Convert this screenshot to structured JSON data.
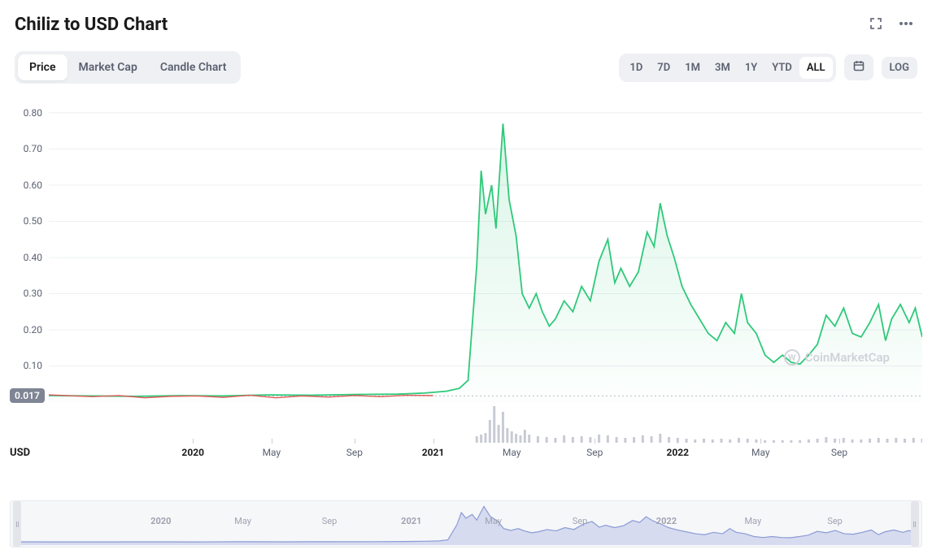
{
  "header": {
    "title": "Chiliz to USD Chart"
  },
  "left_tabs": [
    {
      "label": "Price",
      "active": true
    },
    {
      "label": "Market Cap",
      "active": false
    },
    {
      "label": "Candle Chart",
      "active": false
    }
  ],
  "range_buttons": [
    {
      "label": "1D",
      "active": false
    },
    {
      "label": "7D",
      "active": false
    },
    {
      "label": "1M",
      "active": false
    },
    {
      "label": "3M",
      "active": false
    },
    {
      "label": "1Y",
      "active": false
    },
    {
      "label": "YTD",
      "active": false
    },
    {
      "label": "ALL",
      "active": true
    }
  ],
  "log_label": "LOG",
  "chart": {
    "type": "area",
    "line_color": "#2ec97a",
    "fill_top": "rgba(46,201,122,0.18)",
    "fill_bottom": "rgba(46,201,122,0.01)",
    "btc_line_color": "#e25a5a",
    "grid_color": "#edeff2",
    "background_color": "#ffffff",
    "ylim": [
      0,
      0.82
    ],
    "y_ticks": [
      0.1,
      0.2,
      0.3,
      0.4,
      0.5,
      0.6,
      0.7,
      0.8
    ],
    "current_price_label": "0.017",
    "current_price_value": 0.017,
    "x_labels": [
      {
        "label": "2020",
        "t": 0.165,
        "bold": true
      },
      {
        "label": "May",
        "t": 0.255,
        "bold": false
      },
      {
        "label": "Sep",
        "t": 0.35,
        "bold": false
      },
      {
        "label": "2021",
        "t": 0.44,
        "bold": true
      },
      {
        "label": "May",
        "t": 0.53,
        "bold": false
      },
      {
        "label": "Sep",
        "t": 0.625,
        "bold": false
      },
      {
        "label": "2022",
        "t": 0.72,
        "bold": true
      },
      {
        "label": "May",
        "t": 0.815,
        "bold": false
      },
      {
        "label": "Sep",
        "t": 0.905,
        "bold": false
      }
    ],
    "usd_label": "USD",
    "series": [
      [
        0.0,
        0.018
      ],
      [
        0.05,
        0.017
      ],
      [
        0.1,
        0.016
      ],
      [
        0.15,
        0.018
      ],
      [
        0.2,
        0.017
      ],
      [
        0.25,
        0.02
      ],
      [
        0.3,
        0.019
      ],
      [
        0.35,
        0.021
      ],
      [
        0.4,
        0.022
      ],
      [
        0.43,
        0.025
      ],
      [
        0.455,
        0.03
      ],
      [
        0.47,
        0.038
      ],
      [
        0.48,
        0.06
      ],
      [
        0.49,
        0.38
      ],
      [
        0.495,
        0.64
      ],
      [
        0.5,
        0.52
      ],
      [
        0.507,
        0.6
      ],
      [
        0.512,
        0.48
      ],
      [
        0.52,
        0.77
      ],
      [
        0.527,
        0.56
      ],
      [
        0.535,
        0.46
      ],
      [
        0.542,
        0.3
      ],
      [
        0.55,
        0.26
      ],
      [
        0.558,
        0.3
      ],
      [
        0.565,
        0.25
      ],
      [
        0.573,
        0.21
      ],
      [
        0.58,
        0.23
      ],
      [
        0.59,
        0.28
      ],
      [
        0.6,
        0.25
      ],
      [
        0.61,
        0.32
      ],
      [
        0.62,
        0.28
      ],
      [
        0.63,
        0.39
      ],
      [
        0.64,
        0.45
      ],
      [
        0.648,
        0.33
      ],
      [
        0.655,
        0.37
      ],
      [
        0.665,
        0.32
      ],
      [
        0.675,
        0.36
      ],
      [
        0.685,
        0.47
      ],
      [
        0.693,
        0.43
      ],
      [
        0.7,
        0.55
      ],
      [
        0.708,
        0.46
      ],
      [
        0.716,
        0.4
      ],
      [
        0.725,
        0.32
      ],
      [
        0.735,
        0.27
      ],
      [
        0.745,
        0.23
      ],
      [
        0.755,
        0.19
      ],
      [
        0.765,
        0.17
      ],
      [
        0.775,
        0.22
      ],
      [
        0.785,
        0.19
      ],
      [
        0.793,
        0.3
      ],
      [
        0.8,
        0.22
      ],
      [
        0.81,
        0.19
      ],
      [
        0.82,
        0.13
      ],
      [
        0.83,
        0.11
      ],
      [
        0.84,
        0.13
      ],
      [
        0.85,
        0.11
      ],
      [
        0.86,
        0.105
      ],
      [
        0.87,
        0.13
      ],
      [
        0.88,
        0.16
      ],
      [
        0.89,
        0.24
      ],
      [
        0.9,
        0.21
      ],
      [
        0.91,
        0.26
      ],
      [
        0.92,
        0.19
      ],
      [
        0.93,
        0.18
      ],
      [
        0.94,
        0.22
      ],
      [
        0.95,
        0.27
      ],
      [
        0.958,
        0.17
      ],
      [
        0.965,
        0.23
      ],
      [
        0.975,
        0.27
      ],
      [
        0.985,
        0.22
      ],
      [
        0.992,
        0.26
      ],
      [
        1.0,
        0.18
      ]
    ],
    "btc_series": [
      [
        0.0,
        0.02
      ],
      [
        0.05,
        0.015
      ],
      [
        0.08,
        0.018
      ],
      [
        0.11,
        0.012
      ],
      [
        0.14,
        0.016
      ],
      [
        0.17,
        0.017
      ],
      [
        0.2,
        0.013
      ],
      [
        0.23,
        0.019
      ],
      [
        0.26,
        0.012
      ],
      [
        0.29,
        0.017
      ],
      [
        0.32,
        0.014
      ],
      [
        0.35,
        0.018
      ],
      [
        0.38,
        0.015
      ],
      [
        0.41,
        0.019
      ],
      [
        0.44,
        0.018
      ]
    ],
    "volume_bars": [
      [
        0.49,
        8
      ],
      [
        0.495,
        10
      ],
      [
        0.5,
        12
      ],
      [
        0.505,
        28
      ],
      [
        0.51,
        45
      ],
      [
        0.515,
        22
      ],
      [
        0.52,
        38
      ],
      [
        0.525,
        18
      ],
      [
        0.53,
        14
      ],
      [
        0.535,
        11
      ],
      [
        0.54,
        9
      ],
      [
        0.545,
        16
      ],
      [
        0.55,
        10
      ],
      [
        0.56,
        8
      ],
      [
        0.57,
        7
      ],
      [
        0.58,
        6
      ],
      [
        0.59,
        9
      ],
      [
        0.6,
        7
      ],
      [
        0.61,
        8
      ],
      [
        0.62,
        7
      ],
      [
        0.63,
        10
      ],
      [
        0.64,
        9
      ],
      [
        0.65,
        7
      ],
      [
        0.66,
        6
      ],
      [
        0.67,
        7
      ],
      [
        0.68,
        9
      ],
      [
        0.69,
        8
      ],
      [
        0.7,
        11
      ],
      [
        0.71,
        7
      ],
      [
        0.72,
        6
      ],
      [
        0.73,
        5
      ],
      [
        0.74,
        4
      ],
      [
        0.75,
        5
      ],
      [
        0.76,
        4
      ],
      [
        0.77,
        5
      ],
      [
        0.78,
        4
      ],
      [
        0.79,
        6
      ],
      [
        0.8,
        5
      ],
      [
        0.81,
        4
      ],
      [
        0.82,
        3
      ],
      [
        0.83,
        3
      ],
      [
        0.84,
        3
      ],
      [
        0.85,
        3
      ],
      [
        0.86,
        3
      ],
      [
        0.87,
        4
      ],
      [
        0.88,
        5
      ],
      [
        0.89,
        7
      ],
      [
        0.9,
        5
      ],
      [
        0.91,
        6
      ],
      [
        0.92,
        4
      ],
      [
        0.93,
        4
      ],
      [
        0.94,
        5
      ],
      [
        0.95,
        6
      ],
      [
        0.96,
        5
      ],
      [
        0.97,
        6
      ],
      [
        0.98,
        5
      ],
      [
        0.99,
        6
      ],
      [
        1.0,
        5
      ]
    ],
    "volume_color": "#c8cbd4",
    "navigator": {
      "line_color": "#8b9bd6",
      "fill_color": "rgba(139,155,214,0.30)",
      "left_handle_t": 0.003,
      "right_handle_t": 0.997
    }
  },
  "watermark": "CoinMarketCap"
}
